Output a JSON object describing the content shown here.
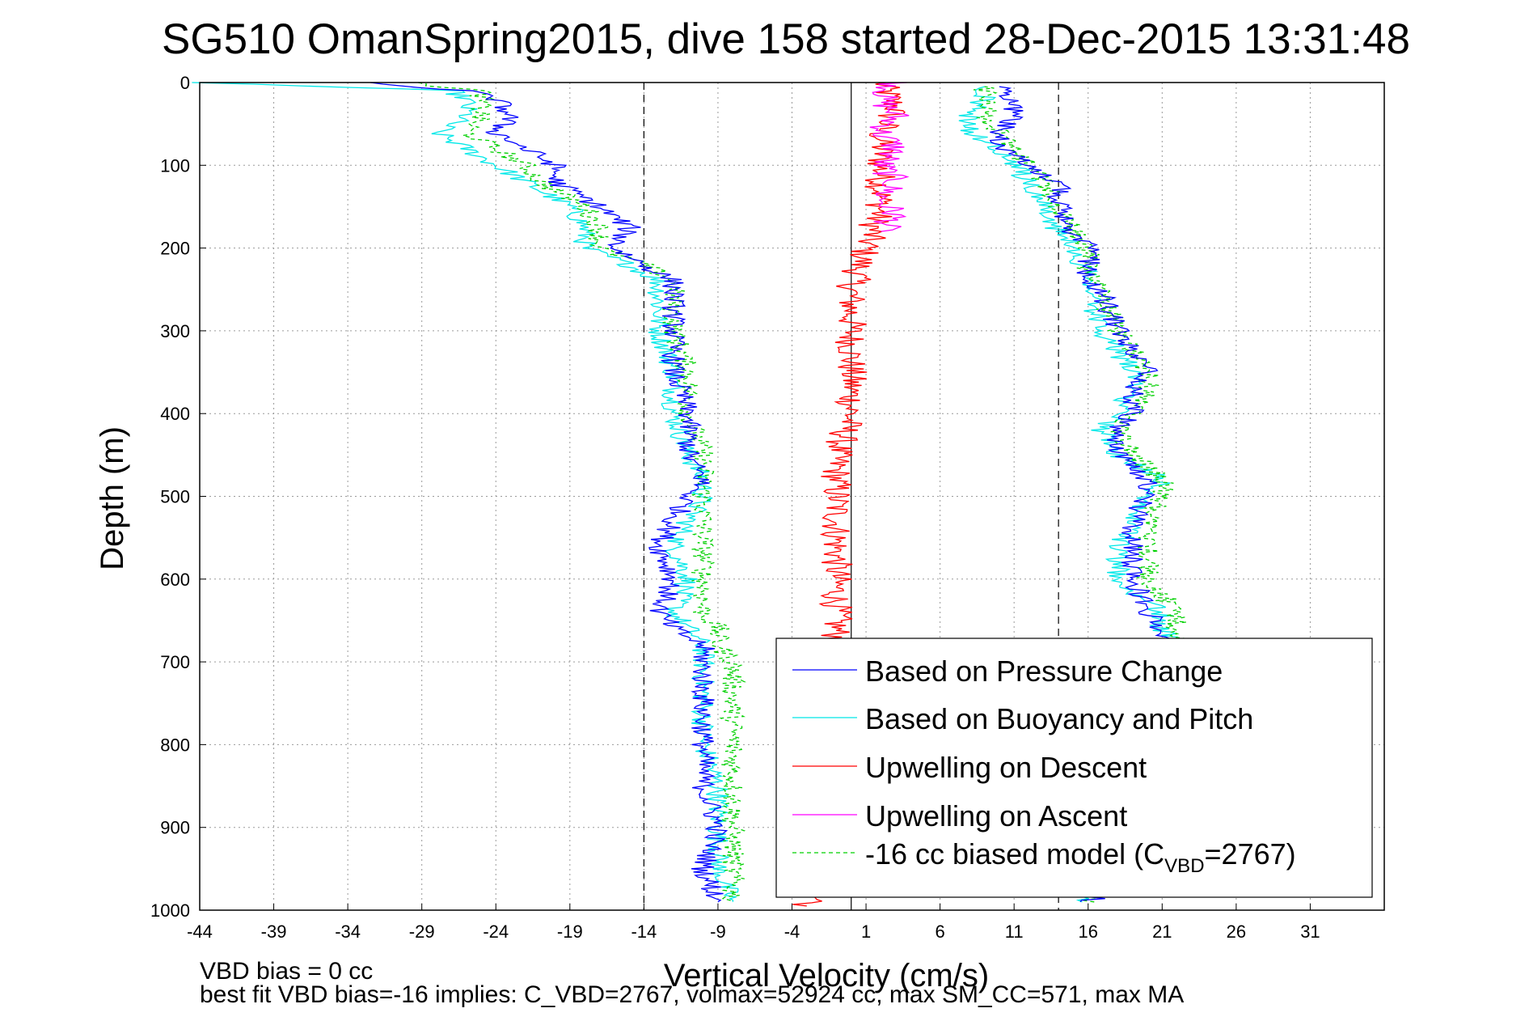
{
  "chart_data": {
    "type": "line",
    "title": "SG510 OmanSpring2015, dive 158 started 28-Dec-2015 13:31:48",
    "xlabel": "Vertical Velocity (cm/s)",
    "ylabel": "Depth (m)",
    "xlim": [
      -44,
      36
    ],
    "ylim": [
      0,
      1000
    ],
    "y_reversed": true,
    "x_ticks": [
      -44,
      -39,
      -34,
      -29,
      -24,
      -19,
      -14,
      -9,
      -4,
      1,
      6,
      11,
      16,
      21,
      26,
      31
    ],
    "y_ticks": [
      0,
      100,
      200,
      300,
      400,
      500,
      600,
      700,
      800,
      900,
      1000
    ],
    "grid": true,
    "legend_position": "lower-right",
    "reference_lines": [
      {
        "x": -14,
        "style": "dashed"
      },
      {
        "x": 0,
        "style": "solid"
      },
      {
        "x": 14,
        "style": "dashed"
      }
    ],
    "series": [
      {
        "name": "Based on Pressure Change",
        "color": "#0000ff",
        "style": "solid",
        "descent": {
          "depth": [
            0,
            10,
            20,
            40,
            60,
            80,
            100,
            120,
            150,
            175,
            200,
            220,
            240,
            260,
            300,
            350,
            400,
            450,
            480,
            500,
            530,
            560,
            600,
            640,
            660,
            680,
            700,
            750,
            800,
            850,
            900,
            950,
            990
          ],
          "velocity": [
            -33,
            -26,
            -24,
            -23,
            -24,
            -22,
            -20,
            -20,
            -17,
            -15,
            -16,
            -14,
            -12,
            -12,
            -12,
            -12,
            -11,
            -11,
            -10,
            -11,
            -12,
            -13,
            -12,
            -13,
            -12,
            -10,
            -10,
            -10,
            -10,
            -10,
            -9,
            -10,
            -9
          ]
        },
        "ascent": {
          "depth": [
            990,
            950,
            900,
            850,
            800,
            750,
            700,
            680,
            660,
            640,
            600,
            560,
            530,
            500,
            480,
            450,
            420,
            400,
            370,
            350,
            300,
            260,
            230,
            200,
            180,
            150,
            120,
            100,
            80,
            60,
            40,
            20,
            5
          ],
          "velocity": [
            16,
            21,
            21,
            21,
            21,
            21,
            21,
            21,
            21,
            20,
            19,
            19,
            19,
            20,
            20,
            18,
            18,
            19,
            19,
            20,
            18,
            17,
            16,
            16,
            15,
            14,
            14,
            12,
            10,
            10,
            11,
            11,
            10
          ]
        }
      },
      {
        "name": "Based on Buoyancy and Pitch",
        "color": "#00e8e8",
        "style": "solid",
        "descent": {
          "depth": [
            0,
            10,
            20,
            40,
            60,
            80,
            100,
            120,
            150,
            175,
            200,
            220,
            240,
            260,
            300,
            350,
            400,
            450,
            480,
            500,
            530,
            560,
            600,
            640,
            660,
            680,
            700,
            750,
            800,
            850,
            900,
            950,
            990
          ],
          "velocity": [
            -44,
            -27,
            -26,
            -26,
            -28,
            -26,
            -24,
            -22,
            -19,
            -18,
            -18,
            -15,
            -13,
            -13,
            -13,
            -12,
            -12,
            -11,
            -10,
            -10,
            -11,
            -12,
            -11,
            -12,
            -11,
            -10,
            -10,
            -10,
            -10,
            -9,
            -9,
            -9,
            -8
          ]
        },
        "ascent": {
          "depth": [
            990,
            950,
            900,
            850,
            800,
            750,
            700,
            680,
            660,
            640,
            600,
            560,
            530,
            500,
            480,
            450,
            420,
            400,
            370,
            350,
            300,
            260,
            230,
            200,
            180,
            150,
            120,
            100,
            80,
            60,
            40,
            20,
            5
          ],
          "velocity": [
            15,
            21,
            22,
            22,
            22,
            22,
            22,
            22,
            21,
            21,
            18,
            18,
            19,
            20,
            21,
            18,
            17,
            18,
            19,
            19,
            17,
            16,
            16,
            15,
            14,
            13,
            12,
            11,
            10,
            8,
            8,
            9,
            9
          ]
        }
      },
      {
        "name": "Upwelling on Descent",
        "color": "#ff0000",
        "style": "solid",
        "depth": [
          0,
          30,
          60,
          100,
          150,
          200,
          250,
          300,
          350,
          400,
          450,
          500,
          550,
          600,
          650,
          700,
          750,
          800,
          850,
          900,
          950,
          995
        ],
        "velocity": [
          2,
          3,
          2,
          2,
          2,
          1,
          0,
          0,
          0,
          0,
          -1,
          -1,
          -1,
          -1,
          -1,
          -1,
          -1,
          0,
          0,
          0,
          0,
          -3
        ]
      },
      {
        "name": "Upwelling on Ascent",
        "color": "#ff00ff",
        "style": "solid",
        "depth": [
          0,
          20,
          40,
          60,
          80,
          100,
          120,
          140,
          160,
          180
        ],
        "velocity": [
          3,
          2,
          3,
          2,
          3,
          2,
          3,
          2,
          3,
          2
        ]
      },
      {
        "name": "-16 cc biased model (C_VBD=2767)",
        "color": "#00d000",
        "style": "dashed",
        "descent": {
          "depth": [
            0,
            10,
            20,
            40,
            60,
            80,
            100,
            120,
            150,
            175,
            200,
            220,
            240,
            260,
            300,
            350,
            400,
            450,
            480,
            500,
            530,
            560,
            600,
            640,
            660,
            680,
            700,
            750,
            800,
            850,
            900,
            950,
            990
          ],
          "velocity": [
            -30,
            -25,
            -25,
            -25,
            -26,
            -24,
            -22,
            -21,
            -18,
            -17,
            -17,
            -14,
            -12,
            -12,
            -12,
            -11,
            -11,
            -10,
            -10,
            -10,
            -10,
            -10,
            -10,
            -10,
            -9,
            -9,
            -8,
            -8,
            -8,
            -8,
            -8,
            -8,
            -8
          ]
        },
        "ascent": {
          "depth": [
            990,
            950,
            900,
            850,
            800,
            750,
            700,
            680,
            660,
            640,
            600,
            560,
            530,
            500,
            480,
            450,
            420,
            400,
            370,
            350,
            300,
            260,
            230,
            200,
            180,
            150,
            120,
            100,
            80,
            60,
            40,
            20,
            5
          ],
          "velocity": [
            16,
            22,
            22,
            22,
            22,
            22,
            22,
            22,
            22,
            22,
            20,
            20,
            20,
            21,
            21,
            19,
            18,
            19,
            20,
            20,
            18,
            17,
            16,
            16,
            15,
            14,
            13,
            12,
            11,
            10,
            9,
            9,
            9
          ]
        }
      }
    ],
    "legend_entries": [
      {
        "label": "Based on Pressure Change",
        "color": "#0000ff",
        "style": "solid"
      },
      {
        "label": "Based on Buoyancy and Pitch",
        "color": "#00e8e8",
        "style": "solid"
      },
      {
        "label": "Upwelling on Descent",
        "color": "#ff0000",
        "style": "solid"
      },
      {
        "label": "Upwelling on Ascent",
        "color": "#ff00ff",
        "style": "solid"
      },
      {
        "label_main": "-16 cc biased model (C",
        "label_sub": "VBD",
        "label_tail": "=2767)",
        "color": "#00d000",
        "style": "dashed"
      }
    ],
    "notes": [
      "VBD bias = 0 cc",
      "best fit VBD bias=-16 implies: C_VBD=2767, volmax=52924 cc, max SM_CC=571, max MA"
    ]
  }
}
